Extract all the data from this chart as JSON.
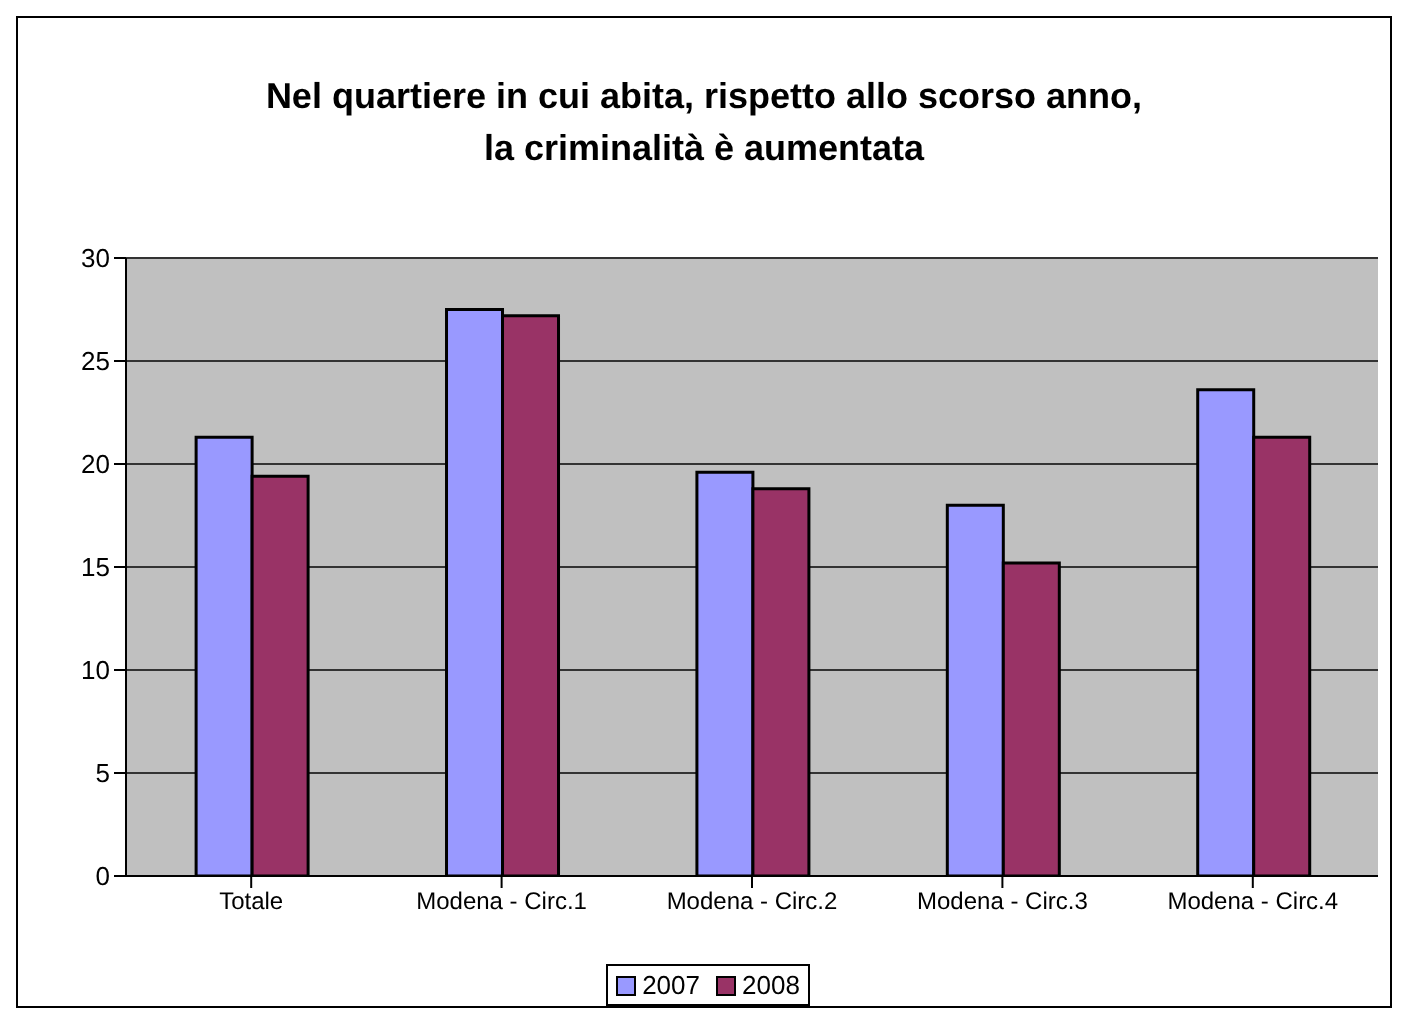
{
  "chart_data": {
    "type": "bar",
    "title": "Nel quartiere in cui abita, rispetto allo scorso anno,\nla criminalità è aumentata",
    "categories": [
      "Totale",
      "Modena - Circ.1",
      "Modena - Circ.2",
      "Modena - Circ.3",
      "Modena - Circ.4"
    ],
    "series": [
      {
        "name": "2007",
        "color": "#9999ff",
        "values": [
          21.3,
          27.5,
          19.6,
          18.0,
          23.6
        ]
      },
      {
        "name": "2008",
        "color": "#993366",
        "values": [
          19.4,
          27.2,
          18.8,
          15.2,
          21.3
        ]
      }
    ],
    "ylim": [
      0,
      30
    ],
    "yticks": [
      0,
      5,
      10,
      15,
      20,
      25,
      30
    ],
    "grid": "y",
    "legend": "bottom"
  }
}
